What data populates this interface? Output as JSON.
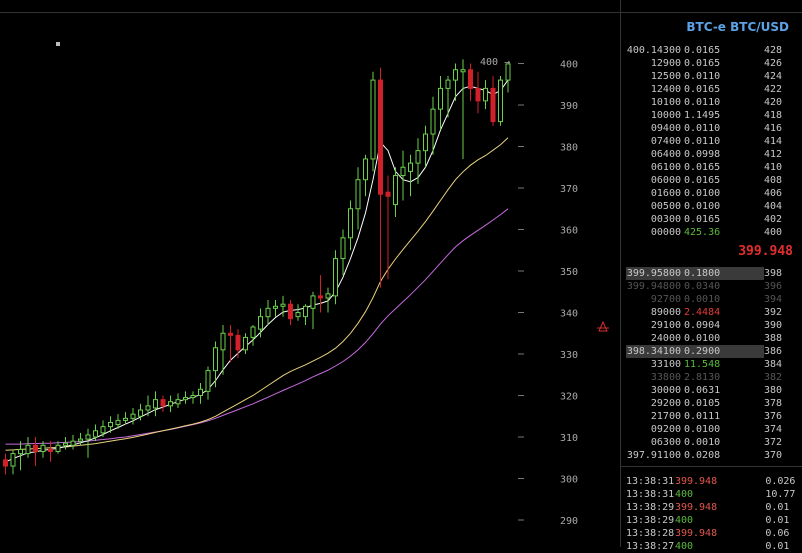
{
  "pair_title": "BTC-e BTC/USD",
  "last_price": "399.948",
  "price_marker": "400 →",
  "colors": {
    "up": "#6bd04a",
    "down": "#d0202a",
    "ma_fast": "#ffffff",
    "ma_mid": "#e8d27a",
    "ma_slow": "#c86ae0",
    "title": "#5ba3e6",
    "last_price": "#e52d2d"
  },
  "asks": [
    {
      "price": "400.14300",
      "amount": "0.0165",
      "level": "428",
      "style": ""
    },
    {
      "price": "12900",
      "amount": "0.0165",
      "level": "426",
      "style": ""
    },
    {
      "price": "12500",
      "amount": "0.0110",
      "level": "424",
      "style": ""
    },
    {
      "price": "12400",
      "amount": "0.0165",
      "level": "422",
      "style": ""
    },
    {
      "price": "10100",
      "amount": "0.0110",
      "level": "420",
      "style": ""
    },
    {
      "price": "10000",
      "amount": "1.1495",
      "level": "418",
      "style": ""
    },
    {
      "price": "09400",
      "amount": "0.0110",
      "level": "416",
      "style": ""
    },
    {
      "price": "07400",
      "amount": "0.0110",
      "level": "414",
      "style": ""
    },
    {
      "price": "06400",
      "amount": "0.0998",
      "level": "412",
      "style": ""
    },
    {
      "price": "06100",
      "amount": "0.0165",
      "level": "410",
      "style": ""
    },
    {
      "price": "06000",
      "amount": "0.0165",
      "level": "408",
      "style": ""
    },
    {
      "price": "01600",
      "amount": "0.0100",
      "level": "406",
      "style": ""
    },
    {
      "price": "00500",
      "amount": "0.0100",
      "level": "404",
      "style": ""
    },
    {
      "price": "00300",
      "amount": "0.0165",
      "level": "402",
      "style": ""
    },
    {
      "price": "00000",
      "amount": "425.36",
      "level": "400",
      "style": "green"
    }
  ],
  "bids": [
    {
      "price": "399.95800",
      "amount": "0.1800",
      "level": "398",
      "style": "hl"
    },
    {
      "price": "399.94800",
      "amount": "0.0340",
      "level": "396",
      "style": "fade"
    },
    {
      "price": "92700",
      "amount": "0.0010",
      "level": "394",
      "style": "fade"
    },
    {
      "price": "89000",
      "amount": "2.4484",
      "level": "392",
      "style": "red"
    },
    {
      "price": "29100",
      "amount": "0.0904",
      "level": "390",
      "style": ""
    },
    {
      "price": "24000",
      "amount": "0.0100",
      "level": "388",
      "style": ""
    },
    {
      "price": "398.34100",
      "amount": "0.2900",
      "level": "386",
      "style": "hl"
    },
    {
      "price": "33100",
      "amount": "11.548",
      "level": "384",
      "style": "green"
    },
    {
      "price": "33800",
      "amount": "2.8130",
      "level": "382",
      "style": "fade"
    },
    {
      "price": "30000",
      "amount": "0.0631",
      "level": "380",
      "style": ""
    },
    {
      "price": "29200",
      "amount": "0.0105",
      "level": "378",
      "style": ""
    },
    {
      "price": "21700",
      "amount": "0.0111",
      "level": "376",
      "style": ""
    },
    {
      "price": "09200",
      "amount": "0.0100",
      "level": "374",
      "style": ""
    },
    {
      "price": "06300",
      "amount": "0.0010",
      "level": "372",
      "style": ""
    },
    {
      "price": "397.91100",
      "amount": "0.0208",
      "level": "370",
      "style": ""
    }
  ],
  "trades": [
    {
      "time": "13:38:31",
      "price": "399.948",
      "side": "red",
      "amount": "0.026"
    },
    {
      "time": "13:38:31",
      "price": "400",
      "side": "green",
      "amount": "10.77"
    },
    {
      "time": "13:38:29",
      "price": "399.948",
      "side": "red",
      "amount": "0.01"
    },
    {
      "time": "13:38:29",
      "price": "400",
      "side": "green",
      "amount": "0.01"
    },
    {
      "time": "13:38:28",
      "price": "399.948",
      "side": "red",
      "amount": "0.06"
    },
    {
      "time": "13:38:27",
      "price": "400",
      "side": "green",
      "amount": "0.01"
    }
  ],
  "chart_data": {
    "type": "candlestick",
    "y_ticks": [
      "290",
      "300",
      "310",
      "320",
      "330",
      "340",
      "350",
      "360",
      "370",
      "380",
      "390",
      "400"
    ],
    "ylim": [
      287,
      404
    ],
    "grid": false,
    "candles": [
      {
        "o": 304.5,
        "h": 306,
        "c": 303,
        "l": 301
      },
      {
        "o": 303,
        "h": 307,
        "c": 306,
        "l": 301
      },
      {
        "o": 306,
        "h": 309,
        "c": 307,
        "l": 302
      },
      {
        "o": 306,
        "h": 310,
        "c": 308,
        "l": 305
      },
      {
        "o": 308,
        "h": 310,
        "c": 306.5,
        "l": 303
      },
      {
        "o": 306.5,
        "h": 309,
        "c": 308,
        "l": 305
      },
      {
        "o": 307,
        "h": 309,
        "c": 306.5,
        "l": 304
      },
      {
        "o": 306.5,
        "h": 309,
        "c": 308,
        "l": 306
      },
      {
        "o": 308,
        "h": 310,
        "c": 308.5,
        "l": 307
      },
      {
        "o": 308,
        "h": 310.5,
        "c": 309,
        "l": 307
      },
      {
        "o": 309,
        "h": 311,
        "c": 309.5,
        "l": 308
      },
      {
        "o": 309.5,
        "h": 312,
        "c": 310.5,
        "l": 305
      },
      {
        "o": 310,
        "h": 313,
        "c": 311.5,
        "l": 309
      },
      {
        "o": 311,
        "h": 314,
        "c": 312.5,
        "l": 310
      },
      {
        "o": 312.5,
        "h": 315,
        "c": 313.5,
        "l": 311
      },
      {
        "o": 313,
        "h": 315.5,
        "c": 314,
        "l": 312
      },
      {
        "o": 314,
        "h": 316,
        "c": 314.5,
        "l": 313
      },
      {
        "o": 314.5,
        "h": 317,
        "c": 315.5,
        "l": 313
      },
      {
        "o": 315,
        "h": 318,
        "c": 316.5,
        "l": 314
      },
      {
        "o": 316.5,
        "h": 320,
        "c": 317.5,
        "l": 315
      },
      {
        "o": 317,
        "h": 321,
        "c": 319,
        "l": 315
      },
      {
        "o": 319,
        "h": 320,
        "c": 317.5,
        "l": 316
      },
      {
        "o": 317.5,
        "h": 320,
        "c": 318.5,
        "l": 316
      },
      {
        "o": 318,
        "h": 320.5,
        "c": 319,
        "l": 317
      },
      {
        "o": 319,
        "h": 321,
        "c": 319.5,
        "l": 318
      },
      {
        "o": 319.5,
        "h": 321,
        "c": 320,
        "l": 318
      },
      {
        "o": 320,
        "h": 323,
        "c": 321.5,
        "l": 318
      },
      {
        "o": 321,
        "h": 327,
        "c": 326,
        "l": 319
      },
      {
        "o": 326,
        "h": 333,
        "c": 331.5,
        "l": 322
      },
      {
        "o": 331,
        "h": 337,
        "c": 335,
        "l": 325
      },
      {
        "o": 335,
        "h": 337,
        "c": 334.5,
        "l": 328
      },
      {
        "o": 334.5,
        "h": 336,
        "c": 331,
        "l": 329
      },
      {
        "o": 331,
        "h": 335,
        "c": 334,
        "l": 330
      },
      {
        "o": 334,
        "h": 337,
        "c": 336.5,
        "l": 332
      },
      {
        "o": 336,
        "h": 341,
        "c": 339,
        "l": 334
      },
      {
        "o": 339,
        "h": 343,
        "c": 341,
        "l": 337
      },
      {
        "o": 341,
        "h": 343,
        "c": 341.5,
        "l": 339
      },
      {
        "o": 341.5,
        "h": 344,
        "c": 342,
        "l": 339
      },
      {
        "o": 342,
        "h": 343,
        "c": 338.5,
        "l": 337
      },
      {
        "o": 339,
        "h": 342,
        "c": 340,
        "l": 338
      },
      {
        "o": 339,
        "h": 342,
        "c": 341.5,
        "l": 337
      },
      {
        "o": 341,
        "h": 345,
        "c": 344,
        "l": 336
      },
      {
        "o": 344,
        "h": 349,
        "c": 343.5,
        "l": 340
      },
      {
        "o": 343.5,
        "h": 346,
        "c": 344.5,
        "l": 340
      },
      {
        "o": 344,
        "h": 355,
        "c": 353,
        "l": 342
      },
      {
        "o": 353,
        "h": 360,
        "c": 358,
        "l": 349
      },
      {
        "o": 358,
        "h": 367,
        "c": 365,
        "l": 355
      },
      {
        "o": 365,
        "h": 375,
        "c": 372,
        "l": 360
      },
      {
        "o": 372,
        "h": 378,
        "c": 377,
        "l": 368
      },
      {
        "o": 377,
        "h": 398,
        "c": 396,
        "l": 374
      },
      {
        "o": 396,
        "h": 399,
        "c": 368.5,
        "l": 346
      },
      {
        "o": 369,
        "h": 373,
        "c": 368,
        "l": 348
      },
      {
        "o": 366,
        "h": 375,
        "c": 373,
        "l": 363
      },
      {
        "o": 373,
        "h": 379,
        "c": 375,
        "l": 367
      },
      {
        "o": 374,
        "h": 378,
        "c": 376,
        "l": 368
      },
      {
        "o": 376,
        "h": 382,
        "c": 379,
        "l": 371
      },
      {
        "o": 379,
        "h": 385,
        "c": 383,
        "l": 375
      },
      {
        "o": 383,
        "h": 392,
        "c": 389,
        "l": 378
      },
      {
        "o": 389,
        "h": 397,
        "c": 394,
        "l": 384
      },
      {
        "o": 394,
        "h": 397,
        "c": 396,
        "l": 387
      },
      {
        "o": 396,
        "h": 400,
        "c": 398.5,
        "l": 391
      },
      {
        "o": 398,
        "h": 401,
        "c": 398.5,
        "l": 377
      },
      {
        "o": 398.5,
        "h": 400,
        "c": 394,
        "l": 391
      },
      {
        "o": 394,
        "h": 398,
        "c": 391,
        "l": 388
      },
      {
        "o": 391,
        "h": 396,
        "c": 394,
        "l": 389
      },
      {
        "o": 394,
        "h": 397,
        "c": 386,
        "l": 385
      },
      {
        "o": 386,
        "h": 397,
        "c": 396,
        "l": 385
      },
      {
        "o": 396,
        "h": 400,
        "c": 399.9,
        "l": 393
      }
    ],
    "ma_fast": [
      304,
      304.8,
      305.5,
      306.2,
      306.4,
      306.8,
      307,
      307.3,
      307.7,
      308.1,
      308.6,
      309.1,
      309.8,
      310.6,
      311.5,
      312.3,
      313.1,
      313.9,
      314.8,
      315.7,
      316.6,
      317.2,
      317.9,
      318.5,
      319.1,
      319.6,
      320.2,
      321.5,
      323.6,
      326.2,
      328.5,
      330.2,
      331.8,
      333.4,
      335.2,
      337.1,
      338.8,
      340.1,
      340.5,
      340.7,
      341.1,
      341.8,
      342.2,
      342.8,
      345,
      348.5,
      353,
      358,
      364,
      372,
      381,
      379,
      374,
      372,
      371.5,
      372.5,
      375,
      379,
      384,
      388,
      392,
      394,
      394.5,
      394,
      393.5,
      392.5,
      393.5,
      396
    ],
    "ma_mid": [
      306.8,
      306.9,
      307,
      307.1,
      307.2,
      307.3,
      307.4,
      307.5,
      307.6,
      307.8,
      308,
      308.2,
      308.4,
      308.7,
      309,
      309.3,
      309.6,
      309.9,
      310.3,
      310.7,
      311.1,
      311.5,
      311.9,
      312.3,
      312.7,
      313.1,
      313.6,
      314.2,
      315,
      316,
      317,
      318,
      319,
      320,
      321.2,
      322.4,
      323.6,
      324.8,
      325.8,
      326.6,
      327.4,
      328.3,
      329.2,
      330.2,
      331.4,
      333,
      335,
      337.4,
      340.2,
      343.6,
      347.5,
      350.4,
      352.9,
      355.2,
      357.4,
      359.6,
      361.9,
      364.4,
      367,
      369.6,
      372,
      373.9,
      375.5,
      376.8,
      377.8,
      379.1,
      380.4,
      382.1
    ],
    "ma_slow": [
      308.3,
      308.3,
      308.3,
      308.4,
      308.4,
      308.5,
      308.5,
      308.6,
      308.7,
      308.8,
      308.9,
      309,
      309.2,
      309.4,
      309.6,
      309.8,
      310,
      310.3,
      310.6,
      310.9,
      311.2,
      311.5,
      311.8,
      312.2,
      312.6,
      313,
      313.4,
      313.9,
      314.5,
      315.2,
      315.9,
      316.6,
      317.3,
      318,
      318.8,
      319.6,
      320.4,
      321.2,
      322,
      322.8,
      323.6,
      324.5,
      325.3,
      326.1,
      327.1,
      328.2,
      329.5,
      331,
      332.8,
      334.9,
      337.2,
      339.2,
      340.9,
      342.6,
      344.3,
      346.1,
      347.9,
      349.9,
      351.9,
      353.9,
      355.8,
      357.3,
      358.6,
      359.8,
      361,
      362.3,
      363.6,
      365
    ]
  }
}
